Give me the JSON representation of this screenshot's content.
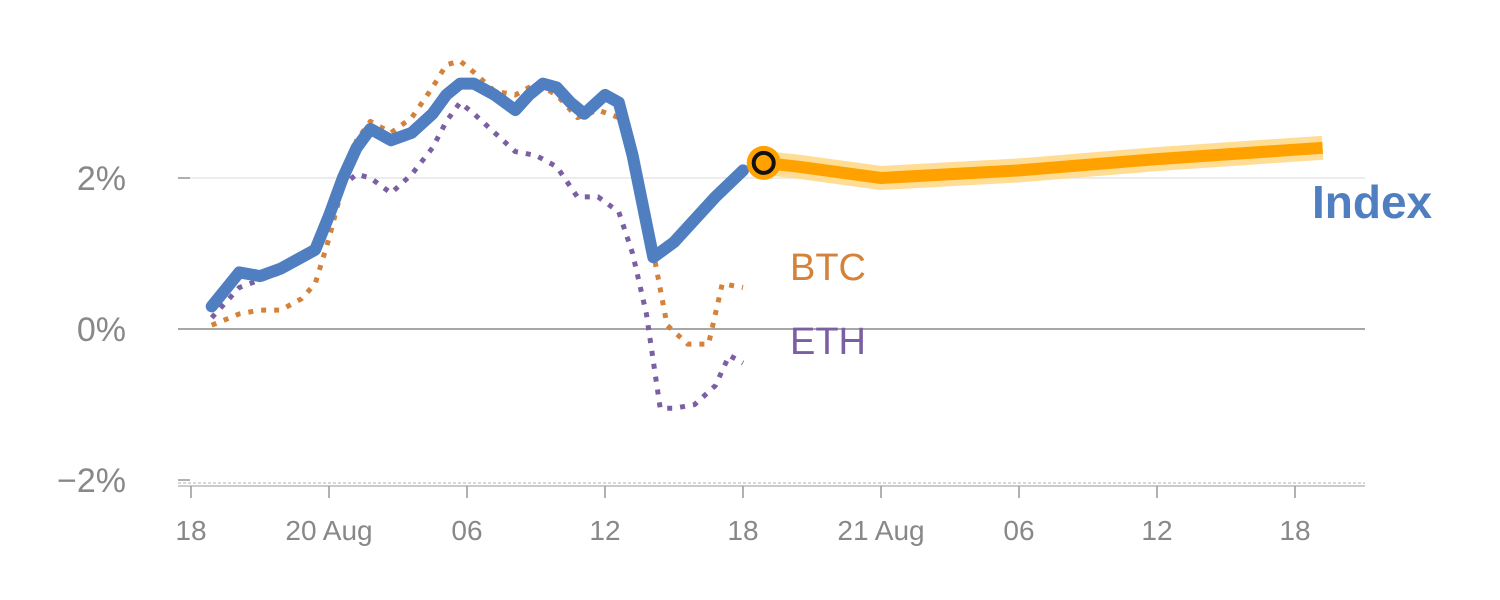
{
  "chart_data": {
    "type": "line",
    "x_axis": {
      "min_hours": -1,
      "max_hours": 84,
      "tick_hours": [
        0,
        10,
        20,
        30,
        40,
        50,
        60,
        70,
        80
      ],
      "tick_labels": [
        "18",
        "20 Aug",
        "06",
        "12",
        "18",
        "21 Aug",
        "06",
        "12",
        "18"
      ]
    },
    "y_axis": {
      "min": -2,
      "max": 3.7,
      "ticks": [
        2,
        0,
        -2
      ],
      "tick_labels": [
        "2%",
        "0%",
        "−2%"
      ]
    },
    "series": [
      {
        "name": "Index",
        "color": "#4f7fc0",
        "style": "solid",
        "hours": [
          1.5,
          3.5,
          5,
          6.5,
          8,
          9,
          10,
          11,
          12,
          13,
          14.5,
          16,
          17.5,
          18.5,
          19.5,
          20.5,
          22,
          23.5,
          24.5,
          25.5,
          26.5,
          27.5,
          28.5,
          30,
          31,
          32,
          33.5,
          35,
          36,
          38,
          40
        ],
        "values": [
          0.3,
          0.75,
          0.7,
          0.8,
          0.95,
          1.05,
          1.5,
          2.0,
          2.4,
          2.65,
          2.5,
          2.6,
          2.85,
          3.1,
          3.25,
          3.25,
          3.1,
          2.9,
          3.1,
          3.25,
          3.2,
          3.0,
          2.85,
          3.1,
          3.0,
          2.3,
          0.95,
          1.15,
          1.35,
          1.75,
          2.1
        ]
      },
      {
        "name": "BTC",
        "color": "#d4813a",
        "style": "dotted",
        "hours": [
          1.5,
          3.5,
          5,
          6.5,
          8,
          9,
          10,
          11,
          12,
          13,
          14.5,
          16,
          17.5,
          18.5,
          19.5,
          20.5,
          22,
          23.5,
          25,
          26.5,
          28,
          29.5,
          31,
          32,
          33,
          34.5,
          36,
          37.5,
          38.5,
          40
        ],
        "values": [
          0.05,
          0.2,
          0.25,
          0.25,
          0.4,
          0.6,
          1.2,
          1.9,
          2.5,
          2.75,
          2.6,
          2.8,
          3.2,
          3.5,
          3.55,
          3.4,
          3.15,
          3.1,
          3.25,
          3.1,
          2.8,
          2.9,
          2.8,
          2.5,
          1.5,
          0.05,
          -0.2,
          -0.2,
          0.6,
          0.55
        ]
      },
      {
        "name": "ETH",
        "color": "#7a5fa3",
        "style": "dotted",
        "hours": [
          1.5,
          3.5,
          5,
          6.5,
          8,
          9,
          10,
          11,
          12,
          13,
          14.5,
          16,
          17.5,
          18.5,
          19.5,
          20.5,
          22,
          23.5,
          25,
          26.5,
          28,
          29.5,
          31,
          32,
          33,
          34,
          35,
          36.5,
          38,
          39,
          40
        ],
        "values": [
          0.15,
          0.55,
          0.65,
          0.75,
          0.9,
          1.0,
          1.55,
          1.9,
          2.05,
          2.0,
          1.8,
          2.05,
          2.4,
          2.75,
          3.0,
          2.85,
          2.6,
          2.35,
          2.3,
          2.15,
          1.75,
          1.75,
          1.55,
          1.0,
          0.2,
          -1.05,
          -1.05,
          -1.0,
          -0.75,
          -0.35,
          -0.45
        ]
      }
    ],
    "forecast": {
      "name": "Index",
      "color": "#ffa200",
      "hours": [
        41.5,
        44,
        50,
        60,
        70,
        82
      ],
      "values": [
        2.2,
        2.15,
        2.0,
        2.1,
        2.25,
        2.4
      ]
    },
    "labels": {
      "btc": "BTC",
      "eth": "ETH",
      "index": "Index"
    }
  }
}
